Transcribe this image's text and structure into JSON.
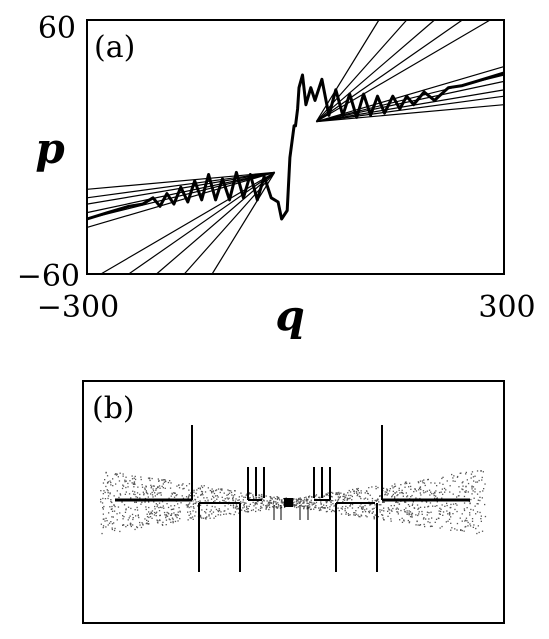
{
  "chart_data": [
    {
      "panel_label": "(a)",
      "type": "line",
      "xlabel": "q",
      "ylabel": "p",
      "xlim": [
        -300,
        300
      ],
      "ylim": [
        -60,
        60
      ],
      "x_tick_labels": [
        "−300",
        "300"
      ],
      "y_tick_labels": [
        "60",
        "−60"
      ],
      "series": [
        {
          "values_xy": [
            [
              -300,
              -34
            ],
            [
              -270,
              -31
            ],
            [
              -240,
              -28
            ],
            [
              -220,
              -27
            ],
            [
              -205,
              -24
            ],
            [
              -195,
              -28
            ],
            [
              -185,
              -22
            ],
            [
              -175,
              -27
            ],
            [
              -165,
              -19
            ],
            [
              -155,
              -26
            ],
            [
              -145,
              -16
            ],
            [
              -135,
              -25
            ],
            [
              -125,
              -13
            ],
            [
              -115,
              -25
            ],
            [
              -105,
              -15
            ],
            [
              -95,
              -25
            ],
            [
              -85,
              -12
            ],
            [
              -75,
              -24
            ],
            [
              -65,
              -13
            ],
            [
              -55,
              -25
            ],
            [
              -45,
              -14
            ],
            [
              -35,
              -24
            ],
            [
              -25,
              -26
            ],
            [
              -20,
              -34
            ],
            [
              -12,
              -30
            ],
            [
              -8,
              -5
            ],
            [
              -2,
              10
            ],
            [
              0,
              10
            ],
            [
              3,
              18
            ],
            [
              5,
              28
            ],
            [
              10,
              34
            ],
            [
              15,
              20
            ],
            [
              22,
              28
            ],
            [
              28,
              22
            ],
            [
              38,
              32
            ],
            [
              48,
              15
            ],
            [
              58,
              27
            ],
            [
              68,
              15
            ],
            [
              78,
              25
            ],
            [
              88,
              14
            ],
            [
              98,
              25
            ],
            [
              108,
              15
            ],
            [
              118,
              24
            ],
            [
              128,
              16
            ],
            [
              140,
              24
            ],
            [
              150,
              18
            ],
            [
              160,
              24
            ],
            [
              170,
              20
            ],
            [
              185,
              26
            ],
            [
              200,
              22
            ],
            [
              220,
              28
            ],
            [
              240,
              29
            ],
            [
              260,
              31
            ],
            [
              280,
              33
            ],
            [
              300,
              35
            ]
          ]
        }
      ],
      "fan_lines_right": {
        "apex": [
          30,
          12
        ],
        "ends": [
          [
            300,
            38
          ],
          [
            300,
            34
          ],
          [
            300,
            31
          ],
          [
            300,
            27
          ],
          [
            300,
            24
          ],
          [
            300,
            20
          ],
          [
            280,
            60
          ],
          [
            240,
            60
          ],
          [
            200,
            60
          ],
          [
            160,
            60
          ],
          [
            120,
            60
          ]
        ]
      },
      "fan_lines_left": {
        "apex": [
          -30,
          -12
        ],
        "ends": [
          [
            -300,
            -38
          ],
          [
            -300,
            -34
          ],
          [
            -300,
            -31
          ],
          [
            -300,
            -27
          ],
          [
            -300,
            -24
          ],
          [
            -300,
            -20
          ],
          [
            -280,
            -60
          ],
          [
            -240,
            -60
          ],
          [
            -200,
            -60
          ],
          [
            -160,
            -60
          ],
          [
            -120,
            -60
          ]
        ]
      },
      "grid": false
    },
    {
      "panel_label": "(b)",
      "type": "scatter",
      "description_axes": "none"
    }
  ]
}
